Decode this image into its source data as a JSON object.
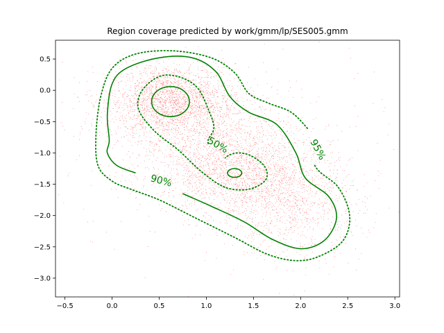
{
  "chart_data": {
    "type": "scatter",
    "title": "Region coverage predicted by work/gmm/lp/SES005.gmm",
    "xlabel": "",
    "ylabel": "",
    "xlim": [
      -0.6,
      3.05
    ],
    "ylim": [
      -3.3,
      0.8
    ],
    "x_ticks": [
      -0.5,
      0.0,
      0.5,
      1.0,
      1.5,
      2.0,
      2.5,
      3.0
    ],
    "x_tick_labels": [
      "−0.5",
      "0.0",
      "0.5",
      "1.0",
      "1.5",
      "2.0",
      "2.5",
      "3.0"
    ],
    "y_ticks": [
      0.5,
      0.0,
      -0.5,
      -1.0,
      -1.5,
      -2.0,
      -2.5,
      -3.0
    ],
    "y_tick_labels": [
      "0.5",
      "0.0",
      "−0.5",
      "−1.0",
      "−1.5",
      "−2.0",
      "−2.5",
      "−3.0"
    ],
    "grid": false,
    "colors": {
      "points": "#ff0000",
      "contours": "#008000"
    },
    "scatter_clusters": [
      {
        "center": [
          0.62,
          -0.18
        ],
        "spread": [
          0.34,
          0.3
        ],
        "count": 2200
      },
      {
        "center": [
          1.35,
          -1.3
        ],
        "spread": [
          0.4,
          0.36
        ],
        "count": 1700
      },
      {
        "center": [
          1.9,
          -1.85
        ],
        "spread": [
          0.38,
          0.42
        ],
        "count": 900
      },
      {
        "center": [
          0.95,
          -0.75
        ],
        "spread": [
          0.55,
          0.45
        ],
        "count": 700
      },
      {
        "center": [
          1.2,
          -1.0
        ],
        "spread": [
          1.0,
          0.95
        ],
        "count": 350
      }
    ],
    "contours": [
      {
        "label": "95%",
        "style": "dotted",
        "label_pos": [
          2.18,
          -0.95
        ],
        "label_rotation": 62,
        "points": [
          [
            2.15,
            -1.2
          ],
          [
            2.4,
            -1.55
          ],
          [
            2.52,
            -2.0
          ],
          [
            2.45,
            -2.4
          ],
          [
            2.2,
            -2.65
          ],
          [
            1.95,
            -2.72
          ],
          [
            1.65,
            -2.62
          ],
          [
            1.3,
            -2.35
          ],
          [
            0.9,
            -2.05
          ],
          [
            0.5,
            -1.75
          ],
          [
            0.2,
            -1.58
          ],
          [
            0.0,
            -1.45
          ],
          [
            -0.15,
            -1.2
          ],
          [
            -0.17,
            -0.7
          ],
          [
            -0.12,
            -0.1
          ],
          [
            0.0,
            0.35
          ],
          [
            0.25,
            0.58
          ],
          [
            0.65,
            0.63
          ],
          [
            1.05,
            0.52
          ],
          [
            1.3,
            0.28
          ],
          [
            1.45,
            -0.05
          ],
          [
            1.65,
            -0.2
          ],
          [
            1.9,
            -0.35
          ],
          [
            2.08,
            -0.62
          ]
        ]
      },
      {
        "label": "90%",
        "style": "solid",
        "label_pos": [
          0.52,
          -1.45
        ],
        "label_rotation": 15,
        "points": [
          [
            0.75,
            -1.65
          ],
          [
            1.05,
            -1.85
          ],
          [
            1.4,
            -2.1
          ],
          [
            1.7,
            -2.38
          ],
          [
            2.0,
            -2.53
          ],
          [
            2.25,
            -2.4
          ],
          [
            2.38,
            -2.05
          ],
          [
            2.3,
            -1.7
          ],
          [
            2.05,
            -1.4
          ],
          [
            1.95,
            -1.0
          ],
          [
            1.75,
            -0.55
          ],
          [
            1.45,
            -0.35
          ],
          [
            1.25,
            -0.1
          ],
          [
            1.1,
            0.3
          ],
          [
            0.85,
            0.52
          ],
          [
            0.5,
            0.52
          ],
          [
            0.15,
            0.35
          ],
          [
            0.0,
            0.1
          ],
          [
            -0.05,
            -0.4
          ],
          [
            -0.03,
            -0.8
          ],
          [
            -0.05,
            -1.0
          ],
          [
            0.05,
            -1.2
          ],
          [
            0.25,
            -1.32
          ]
        ]
      },
      {
        "label": "50%",
        "style": "dotted",
        "label_pos": [
          1.12,
          -0.88
        ],
        "label_rotation": 30,
        "points": [
          [
            1.02,
            -0.85
          ],
          [
            1.08,
            -0.6
          ],
          [
            1.02,
            -0.3
          ],
          [
            0.9,
            0.05
          ],
          [
            0.7,
            0.22
          ],
          [
            0.5,
            0.22
          ],
          [
            0.32,
            0.0
          ],
          [
            0.28,
            -0.3
          ],
          [
            0.45,
            -0.65
          ],
          [
            0.7,
            -0.95
          ],
          [
            0.95,
            -1.3
          ],
          [
            1.2,
            -1.55
          ],
          [
            1.45,
            -1.58
          ],
          [
            1.63,
            -1.43
          ],
          [
            1.62,
            -1.22
          ],
          [
            1.48,
            -1.05
          ],
          [
            1.35,
            -1.0
          ],
          [
            1.25,
            -1.03
          ],
          [
            1.2,
            -1.08
          ]
        ]
      },
      {
        "label": "",
        "style": "solid",
        "ellipse": {
          "center": [
            0.62,
            -0.18
          ],
          "rx": 0.2,
          "ry": 0.24
        }
      },
      {
        "label": "",
        "style": "solid",
        "ellipse": {
          "center": [
            1.3,
            -1.32
          ],
          "rx": 0.075,
          "ry": 0.07
        }
      }
    ]
  }
}
